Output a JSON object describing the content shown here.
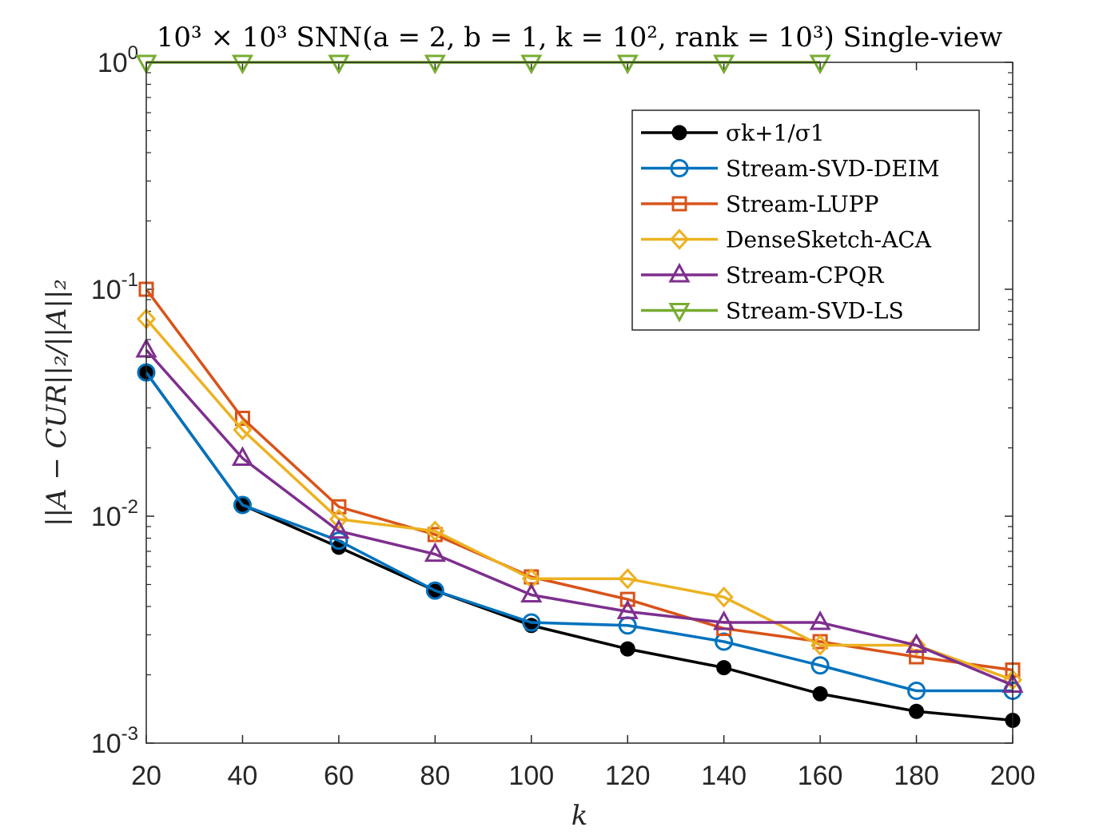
{
  "chart_data": {
    "type": "line",
    "title": "10³ × 10³  SNN(a = 2, b = 1, k = 10², rank = 10³) Single-view",
    "xlabel": "k",
    "ylabel": "||A − CUR||₂/||A||₂",
    "x": [
      20,
      40,
      60,
      80,
      100,
      120,
      140,
      160,
      180,
      200
    ],
    "xlim": [
      20,
      200
    ],
    "ylim": [
      0.001,
      1
    ],
    "yscale": "log",
    "xticks": [
      "20",
      "40",
      "60",
      "80",
      "100",
      "120",
      "140",
      "160",
      "180",
      "200"
    ],
    "yticks": [
      {
        "base": "10",
        "exp": "-3",
        "value": 0.001
      },
      {
        "base": "10",
        "exp": "-2",
        "value": 0.01
      },
      {
        "base": "10",
        "exp": "-1",
        "value": 0.1
      },
      {
        "base": "10",
        "exp": "0",
        "value": 1
      }
    ],
    "grid": false,
    "legend_position": "top-right",
    "series": [
      {
        "name": "σk+1/σ1",
        "color": "#000000",
        "marker": "filled-circle",
        "values": [
          0.043,
          0.0112,
          0.0073,
          0.0047,
          0.0033,
          0.0026,
          0.00215,
          0.00165,
          0.00138,
          0.00126
        ]
      },
      {
        "name": "Stream-SVD-DEIM",
        "color": "#0072BD",
        "marker": "circle",
        "values": [
          0.043,
          0.0112,
          0.0078,
          0.0047,
          0.0034,
          0.0033,
          0.0028,
          0.0022,
          0.0017,
          0.0017
        ]
      },
      {
        "name": "Stream-LUPP",
        "color": "#D95319",
        "marker": "square",
        "values": [
          0.1,
          0.027,
          0.011,
          0.0083,
          0.0054,
          0.0043,
          0.0032,
          0.0028,
          0.0024,
          0.0021
        ]
      },
      {
        "name": "DenseSketch-ACA",
        "color": "#EDB120",
        "marker": "diamond",
        "values": [
          0.074,
          0.024,
          0.0097,
          0.0086,
          0.0053,
          0.0053,
          0.0044,
          0.0027,
          0.0027,
          0.0019
        ]
      },
      {
        "name": "Stream-CPQR",
        "color": "#7E2F8E",
        "marker": "triangle-up",
        "values": [
          0.054,
          0.018,
          0.0086,
          0.0068,
          0.0045,
          0.0038,
          0.0034,
          0.0034,
          0.0027,
          0.0018
        ]
      },
      {
        "name": "Stream-SVD-LS",
        "color": "#77AC30",
        "marker": "triangle-down",
        "values": [
          1,
          1,
          1,
          1,
          1,
          1,
          1,
          1,
          null,
          null
        ]
      }
    ]
  }
}
